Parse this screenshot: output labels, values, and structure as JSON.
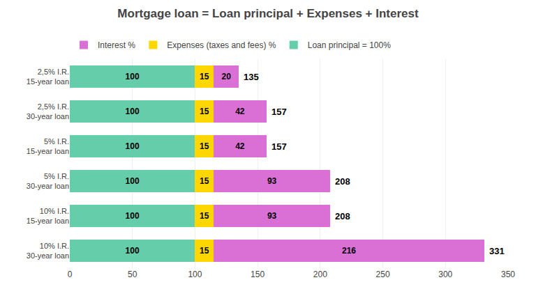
{
  "chart_data": {
    "type": "bar",
    "orientation": "horizontal",
    "stacked": true,
    "title": "Mortgage loan = Loan principal + Expenses + Interest",
    "categories": [
      "2,5% I.R.\n15-year loan",
      "2,5% I.R.\n30-year loan",
      "5% I.R.\n15-year loan",
      "5% I.R.\n30-year loan",
      "10% I.R.\n15-year loan",
      "10% I.R.\n30-year loan"
    ],
    "series": [
      {
        "name": "Loan principal = 100%",
        "color": "#66CDAA",
        "values": [
          100,
          100,
          100,
          100,
          100,
          100
        ]
      },
      {
        "name": "Expenses (taxes and fees) %",
        "color": "#FFD700",
        "values": [
          15,
          15,
          15,
          15,
          15,
          15
        ]
      },
      {
        "name": "Interest %",
        "color": "#DA70D6",
        "values": [
          20,
          42,
          42,
          93,
          93,
          216
        ]
      }
    ],
    "totals": [
      135,
      157,
      157,
      208,
      208,
      331
    ],
    "data_labels": true,
    "xlim": [
      0,
      350
    ],
    "xticks": [
      0,
      50,
      100,
      150,
      200,
      250,
      300,
      350
    ],
    "grid": true,
    "legend": "top"
  }
}
